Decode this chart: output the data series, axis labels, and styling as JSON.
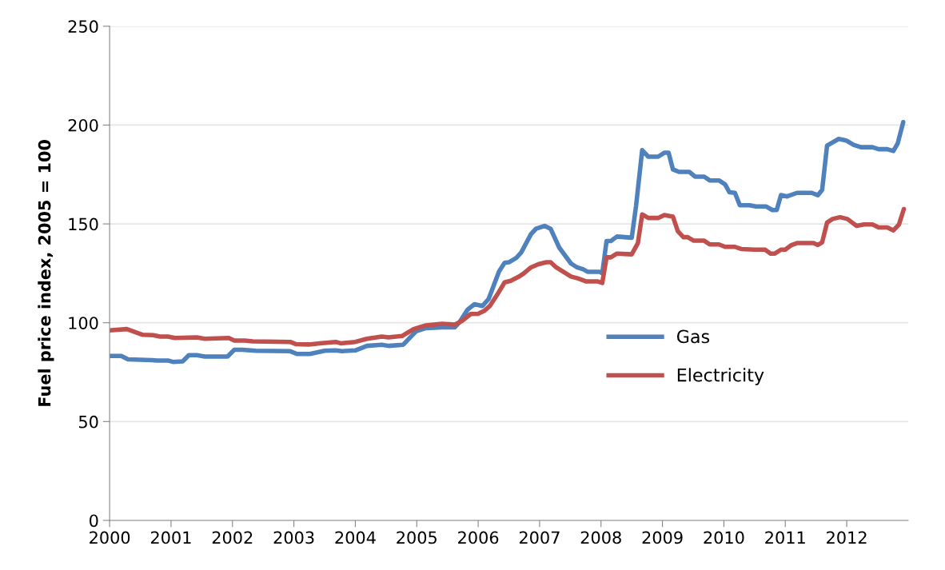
{
  "chart_data": {
    "type": "line",
    "ylabel": "Fuel price index, 2005 = 100",
    "xlim": [
      2000,
      2013
    ],
    "xticks": [
      2000,
      2001,
      2002,
      2003,
      2004,
      2005,
      2006,
      2007,
      2008,
      2009,
      2010,
      2011,
      2012
    ],
    "ylim": [
      0,
      250
    ],
    "yticks": [
      0,
      50,
      100,
      150,
      200,
      250
    ],
    "grid": "y",
    "legend": "right",
    "marker": "none",
    "line_style": "solid",
    "series": [
      {
        "name": "Gas",
        "color": "#4f81bd",
        "x": [
          2000.0,
          2000.19,
          2000.3,
          2000.69,
          2000.77,
          2000.95,
          2001.03,
          2001.19,
          2001.29,
          2001.42,
          2001.55,
          2001.92,
          2002.03,
          2002.16,
          2002.38,
          2002.94,
          2003.05,
          2003.26,
          2003.5,
          2003.68,
          2003.78,
          2004.0,
          2004.19,
          2004.43,
          2004.54,
          2004.78,
          2004.99,
          2005.15,
          2005.41,
          2005.62,
          2005.69,
          2005.83,
          2005.94,
          2006.07,
          2006.17,
          2006.34,
          2006.43,
          2006.5,
          2006.62,
          2006.7,
          2006.86,
          2006.94,
          2007.08,
          2007.18,
          2007.32,
          2007.51,
          2007.61,
          2007.71,
          2007.78,
          2007.97,
          2008.02,
          2008.09,
          2008.16,
          2008.26,
          2008.5,
          2008.57,
          2008.67,
          2008.77,
          2008.93,
          2009.03,
          2009.1,
          2009.17,
          2009.27,
          2009.44,
          2009.53,
          2009.68,
          2009.77,
          2009.92,
          2010.02,
          2010.09,
          2010.18,
          2010.26,
          2010.42,
          2010.52,
          2010.69,
          2010.79,
          2010.86,
          2010.93,
          2011.03,
          2011.19,
          2011.43,
          2011.53,
          2011.6,
          2011.68,
          2011.87,
          2011.99,
          2012.11,
          2012.23,
          2012.42,
          2012.52,
          2012.66,
          2012.76,
          2012.83,
          2012.92
        ],
        "values": [
          83.2,
          83.2,
          81.5,
          81.1,
          80.9,
          80.9,
          80.2,
          80.5,
          83.6,
          83.6,
          82.9,
          82.9,
          86.3,
          86.3,
          85.8,
          85.6,
          84.2,
          84.2,
          85.8,
          86,
          85.6,
          86,
          88.3,
          88.9,
          88.3,
          88.9,
          95.7,
          97.3,
          97.7,
          97.7,
          100,
          106.7,
          109.4,
          108.5,
          112,
          126,
          130.3,
          130.6,
          132.8,
          135.5,
          144.8,
          147.5,
          149,
          147.5,
          138,
          130,
          128,
          127,
          125.8,
          125.8,
          125,
          141.3,
          141.3,
          143.6,
          143,
          159,
          187.3,
          184,
          184,
          186,
          186,
          177.6,
          176.3,
          176.3,
          173.9,
          173.9,
          172,
          172,
          170,
          166,
          165.7,
          159.4,
          159.4,
          158.8,
          158.8,
          157,
          157,
          164.6,
          163.9,
          165.7,
          165.7,
          164.5,
          167.2,
          189.6,
          193,
          192.2,
          190,
          188.8,
          188.8,
          187.8,
          187.8,
          186.9,
          190.7,
          201.5
        ]
      },
      {
        "name": "Electricity",
        "color": "#c0504d",
        "x": [
          2000.0,
          2000.28,
          2000.54,
          2000.71,
          2000.82,
          2000.95,
          2001.06,
          2001.42,
          2001.55,
          2001.94,
          2002.03,
          2002.2,
          2002.33,
          2002.94,
          2003.03,
          2003.24,
          2003.42,
          2003.68,
          2003.76,
          2004.0,
          2004.19,
          2004.43,
          2004.54,
          2004.76,
          2004.95,
          2005.15,
          2005.41,
          2005.62,
          2005.73,
          2005.88,
          2006.0,
          2006.1,
          2006.19,
          2006.31,
          2006.43,
          2006.53,
          2006.65,
          2006.74,
          2006.86,
          2006.98,
          2007.11,
          2007.18,
          2007.27,
          2007.51,
          2007.63,
          2007.76,
          2007.95,
          2008.02,
          2008.09,
          2008.16,
          2008.26,
          2008.5,
          2008.6,
          2008.67,
          2008.77,
          2008.93,
          2009.03,
          2009.17,
          2009.25,
          2009.34,
          2009.41,
          2009.51,
          2009.68,
          2009.77,
          2009.92,
          2010.02,
          2010.18,
          2010.28,
          2010.5,
          2010.67,
          2010.76,
          2010.83,
          2010.93,
          2011.0,
          2011.1,
          2011.19,
          2011.46,
          2011.53,
          2011.6,
          2011.68,
          2011.77,
          2011.89,
          2012.01,
          2012.16,
          2012.28,
          2012.42,
          2012.52,
          2012.66,
          2012.76,
          2012.85,
          2012.93
        ],
        "values": [
          96.1,
          96.8,
          93.9,
          93.7,
          93,
          93,
          92.3,
          92.6,
          91.9,
          92.3,
          91,
          91,
          90.6,
          90.3,
          89.2,
          89,
          89.6,
          90.3,
          89.6,
          90.3,
          91.9,
          93,
          92.6,
          93.3,
          96.8,
          98.7,
          99.5,
          99.1,
          100.8,
          104.4,
          104.5,
          106,
          108.5,
          114.2,
          120.4,
          121.2,
          123.1,
          124.9,
          128,
          129.6,
          130.6,
          130.6,
          128,
          123.4,
          122.4,
          120.9,
          120.9,
          120.1,
          133.1,
          133.1,
          135,
          134.6,
          140.3,
          154.8,
          153,
          153,
          154.5,
          153.7,
          146.3,
          143.3,
          143.3,
          141.5,
          141.5,
          139.6,
          139.6,
          138.4,
          138.4,
          137.3,
          137,
          137,
          135,
          135,
          137,
          137,
          139.3,
          140.3,
          140.3,
          139.3,
          140.7,
          150.7,
          152.5,
          153.4,
          152.5,
          149,
          149.7,
          149.7,
          148.2,
          148.2,
          146.7,
          149.7,
          157.5
        ]
      }
    ]
  }
}
